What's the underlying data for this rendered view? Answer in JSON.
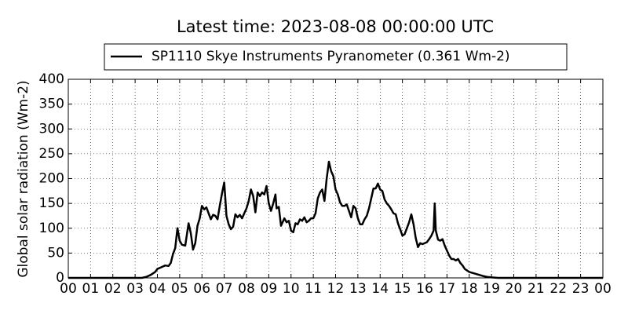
{
  "chart_data": {
    "type": "line",
    "title": "Latest time: 2023-08-08 00:00:00 UTC",
    "ylabel": "Global solar radiation (Wm-2)",
    "legend": "top",
    "grid": true,
    "xlim": [
      0,
      24
    ],
    "ylim": [
      0,
      400
    ],
    "yticks": [
      0,
      50,
      100,
      150,
      200,
      250,
      300,
      350,
      400
    ],
    "xticks": [
      {
        "value": 0,
        "label": "00"
      },
      {
        "value": 1,
        "label": "01"
      },
      {
        "value": 2,
        "label": "02"
      },
      {
        "value": 3,
        "label": "03"
      },
      {
        "value": 4,
        "label": "04"
      },
      {
        "value": 5,
        "label": "05"
      },
      {
        "value": 6,
        "label": "06"
      },
      {
        "value": 7,
        "label": "07"
      },
      {
        "value": 8,
        "label": "08"
      },
      {
        "value": 9,
        "label": "09"
      },
      {
        "value": 10,
        "label": "10"
      },
      {
        "value": 11,
        "label": "11"
      },
      {
        "value": 12,
        "label": "12"
      },
      {
        "value": 13,
        "label": "13"
      },
      {
        "value": 14,
        "label": "14"
      },
      {
        "value": 15,
        "label": "15"
      },
      {
        "value": 16,
        "label": "16"
      },
      {
        "value": 17,
        "label": "17"
      },
      {
        "value": 18,
        "label": "18"
      },
      {
        "value": 19,
        "label": "19"
      },
      {
        "value": 20,
        "label": "20"
      },
      {
        "value": 21,
        "label": "21"
      },
      {
        "value": 22,
        "label": "22"
      },
      {
        "value": 23,
        "label": "23"
      },
      {
        "value": 24,
        "label": "00"
      }
    ],
    "x": [
      0,
      3.0,
      3.3,
      3.5,
      3.7,
      3.9,
      4.0,
      4.2,
      4.35,
      4.5,
      4.6,
      4.7,
      4.8,
      4.9,
      5.0,
      5.1,
      5.25,
      5.4,
      5.5,
      5.6,
      5.7,
      5.8,
      5.9,
      6.0,
      6.1,
      6.2,
      6.3,
      6.4,
      6.5,
      6.6,
      6.7,
      6.8,
      6.9,
      7.0,
      7.05,
      7.1,
      7.2,
      7.3,
      7.4,
      7.5,
      7.6,
      7.7,
      7.8,
      7.9,
      8.0,
      8.1,
      8.2,
      8.3,
      8.4,
      8.5,
      8.6,
      8.7,
      8.8,
      8.9,
      9.0,
      9.1,
      9.2,
      9.3,
      9.35,
      9.45,
      9.55,
      9.7,
      9.8,
      9.9,
      10.0,
      10.1,
      10.2,
      10.3,
      10.4,
      10.5,
      10.6,
      10.7,
      10.8,
      10.9,
      11.0,
      11.1,
      11.2,
      11.3,
      11.4,
      11.5,
      11.6,
      11.7,
      11.8,
      11.9,
      12.0,
      12.1,
      12.2,
      12.3,
      12.4,
      12.5,
      12.6,
      12.7,
      12.8,
      12.9,
      13.0,
      13.1,
      13.2,
      13.3,
      13.4,
      13.5,
      13.6,
      13.7,
      13.8,
      13.9,
      14.0,
      14.1,
      14.2,
      14.3,
      14.4,
      14.5,
      14.6,
      14.7,
      14.8,
      14.9,
      15.0,
      15.1,
      15.2,
      15.3,
      15.4,
      15.5,
      15.6,
      15.7,
      15.8,
      15.9,
      16.0,
      16.1,
      16.2,
      16.3,
      16.4,
      16.45,
      16.5,
      16.6,
      16.7,
      16.8,
      16.9,
      17.0,
      17.1,
      17.2,
      17.3,
      17.4,
      17.5,
      17.6,
      17.7,
      17.8,
      18.0,
      18.3,
      18.6,
      18.8,
      19.0,
      19.3,
      24
    ],
    "series": [
      {
        "name": "SP1110 Skye Instruments Pyranometer (0.361 Wm-2)",
        "color": "#000000",
        "values": [
          0,
          0,
          0,
          2,
          6,
          12,
          18,
          22,
          25,
          24,
          30,
          48,
          60,
          100,
          75,
          67,
          65,
          110,
          90,
          57,
          70,
          105,
          120,
          145,
          138,
          142,
          130,
          118,
          127,
          125,
          118,
          145,
          170,
          192,
          160,
          125,
          108,
          98,
          103,
          128,
          122,
          127,
          120,
          130,
          140,
          155,
          178,
          165,
          132,
          172,
          165,
          172,
          168,
          185,
          150,
          135,
          150,
          168,
          140,
          143,
          105,
          120,
          112,
          115,
          95,
          92,
          110,
          108,
          118,
          115,
          122,
          112,
          115,
          120,
          120,
          130,
          160,
          172,
          178,
          155,
          200,
          234,
          215,
          205,
          178,
          168,
          152,
          145,
          145,
          148,
          135,
          122,
          145,
          140,
          120,
          108,
          108,
          118,
          125,
          140,
          160,
          180,
          180,
          190,
          178,
          175,
          158,
          150,
          145,
          138,
          130,
          128,
          110,
          98,
          85,
          88,
          100,
          112,
          128,
          108,
          80,
          62,
          70,
          68,
          70,
          72,
          78,
          85,
          95,
          150,
          95,
          77,
          75,
          78,
          65,
          55,
          45,
          38,
          38,
          35,
          38,
          30,
          25,
          18,
          12,
          8,
          4,
          2,
          1,
          0,
          0
        ]
      }
    ]
  }
}
